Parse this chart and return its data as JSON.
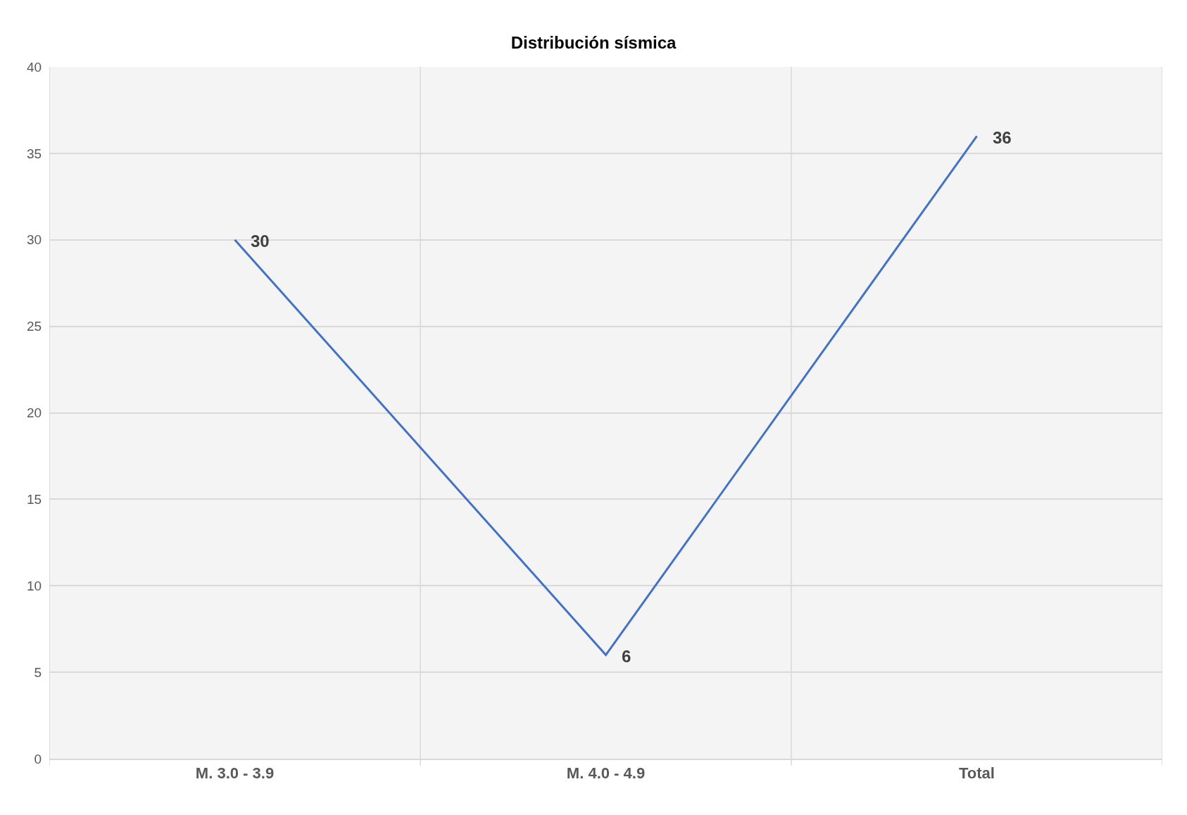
{
  "chart_data": {
    "type": "line",
    "title": "Distribución sísmica",
    "categories": [
      "M. 3.0 - 3.9",
      "M. 4.0 - 4.9",
      "Total"
    ],
    "series": [
      {
        "color": "#4472c4",
        "values": [
          30,
          6,
          36
        ]
      }
    ],
    "ylim": [
      0,
      40
    ],
    "yticks": [
      0,
      5,
      10,
      15,
      20,
      25,
      30,
      35,
      40
    ],
    "grid": true,
    "marker": "none",
    "line_style": "solid",
    "data_labels": true
  }
}
